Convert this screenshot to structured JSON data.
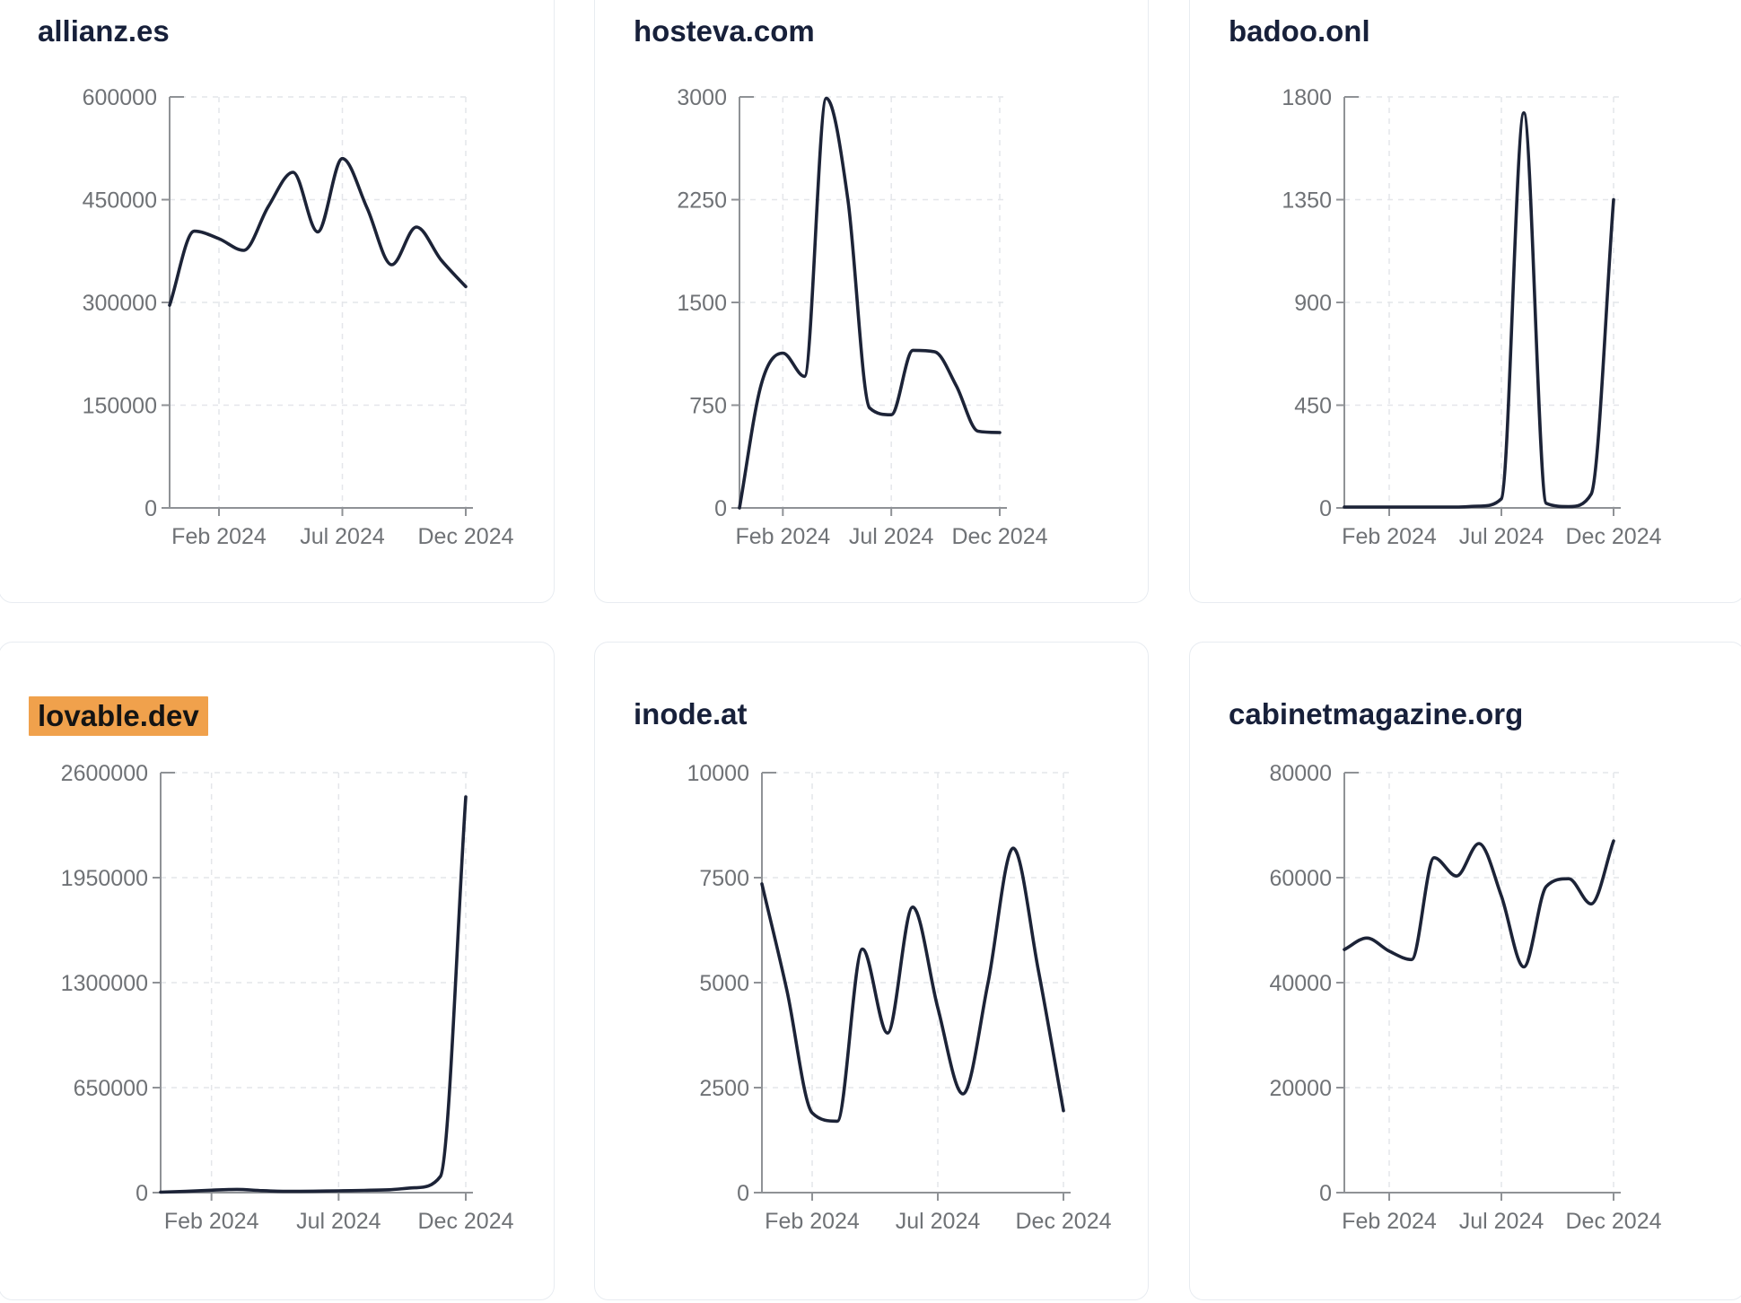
{
  "palette": {
    "line_color": "#1c2337",
    "title_color": "#17203a",
    "highlight_color": "#f0a14c",
    "highlight_text_color": "#141414",
    "axis_color": "#8f9296",
    "tick_text_color": "#6f7276",
    "grid_color": "#e4e6ea",
    "card_border_color": "#e8ecf1",
    "card_background": "#ffffff"
  },
  "chart_data": [
    {
      "type": "line",
      "title": "allianz.es",
      "highlighted": false,
      "x_tick_labels": [
        "Feb 2024",
        "Jul 2024",
        "Dec 2024"
      ],
      "x_tick_month_index": [
        2,
        7,
        12
      ],
      "x_range_months": 12,
      "values": [
        296000,
        404000,
        393000,
        376000,
        440000,
        490000,
        403000,
        510000,
        438000,
        355000,
        410000,
        362000,
        323000
      ],
      "yticks": [
        0,
        150000,
        300000,
        450000,
        600000
      ],
      "ylim": [
        0,
        600000
      ],
      "grid": true,
      "legend": "none"
    },
    {
      "type": "line",
      "title": "hosteva.com",
      "highlighted": false,
      "x_tick_labels": [
        "Feb 2024",
        "Jul 2024",
        "Dec 2024"
      ],
      "x_tick_month_index": [
        2,
        7,
        12
      ],
      "x_range_months": 12,
      "values": [
        0,
        900,
        1130,
        960,
        2990,
        2250,
        730,
        680,
        1150,
        1140,
        890,
        560,
        550
      ],
      "yticks": [
        0,
        750,
        1500,
        2250,
        3000
      ],
      "ylim": [
        0,
        3000
      ],
      "grid": true,
      "legend": "none"
    },
    {
      "type": "line",
      "title": "badoo.onl",
      "highlighted": false,
      "x_tick_labels": [
        "Feb 2024",
        "Jul 2024",
        "Dec 2024"
      ],
      "x_tick_month_index": [
        2,
        7,
        12
      ],
      "x_range_months": 12,
      "values": [
        4,
        4,
        4,
        4,
        4,
        4,
        8,
        40,
        1730,
        20,
        6,
        60,
        1350
      ],
      "yticks": [
        0,
        450,
        900,
        1350,
        1800
      ],
      "ylim": [
        0,
        1800
      ],
      "grid": true,
      "legend": "none"
    },
    {
      "type": "line",
      "title": "lovable.dev",
      "highlighted": true,
      "x_tick_labels": [
        "Feb 2024",
        "Jul 2024",
        "Dec 2024"
      ],
      "x_tick_month_index": [
        2,
        7,
        12
      ],
      "x_range_months": 12,
      "values": [
        3000,
        8000,
        15000,
        20000,
        12000,
        8000,
        9000,
        11000,
        14000,
        18000,
        30000,
        100000,
        2450000
      ],
      "yticks": [
        0,
        650000,
        1300000,
        1950000,
        2600000
      ],
      "ylim": [
        0,
        2600000
      ],
      "grid": true,
      "legend": "none"
    },
    {
      "type": "line",
      "title": "inode.at",
      "highlighted": false,
      "x_tick_labels": [
        "Feb 2024",
        "Jul 2024",
        "Dec 2024"
      ],
      "x_tick_month_index": [
        2,
        7,
        12
      ],
      "x_range_months": 12,
      "values": [
        7350,
        4800,
        1900,
        1700,
        5800,
        3800,
        6800,
        4400,
        2350,
        5000,
        8200,
        5300,
        1950
      ],
      "yticks": [
        0,
        2500,
        5000,
        7500,
        10000
      ],
      "ylim": [
        0,
        10000
      ],
      "grid": true,
      "legend": "none"
    },
    {
      "type": "line",
      "title": "cabinetmagazine.org",
      "highlighted": false,
      "x_tick_labels": [
        "Feb 2024",
        "Jul 2024",
        "Dec 2024"
      ],
      "x_tick_month_index": [
        2,
        7,
        12
      ],
      "x_range_months": 12,
      "values": [
        46300,
        48500,
        46000,
        44400,
        63800,
        60300,
        66500,
        56500,
        43000,
        58300,
        59800,
        55000,
        67000
      ],
      "yticks": [
        0,
        20000,
        40000,
        60000,
        80000
      ],
      "ylim": [
        0,
        80000
      ],
      "grid": true,
      "legend": "none"
    }
  ]
}
